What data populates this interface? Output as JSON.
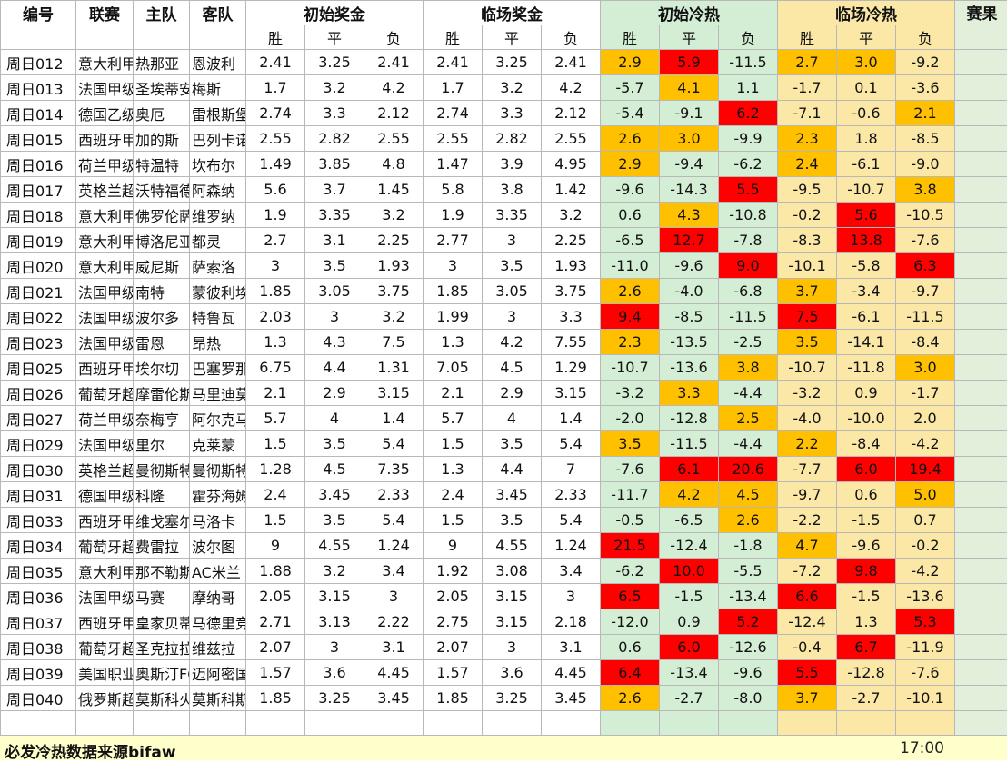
{
  "headers": {
    "code": "编号",
    "league": "联赛",
    "home": "主队",
    "away": "客队",
    "init_odds": "初始奖金",
    "live_odds": "临场奖金",
    "init_heat": "初始冷热",
    "live_heat": "临场冷热",
    "result": "赛果",
    "sub": [
      "胜",
      "平",
      "负",
      "胜",
      "平",
      "负",
      "胜",
      "平",
      "负",
      "胜",
      "平",
      "负"
    ]
  },
  "colors": {
    "red": "#ff0000",
    "orange": "#ffc000",
    "green_bg": "#d4eed6",
    "yellow_bg": "#fbe7a6",
    "footer_bg": "#ffffcc"
  },
  "rows": [
    {
      "code": "周日012",
      "league": "意大利甲",
      "home": "热那亚",
      "away": "恩波利",
      "io": [
        "2.41",
        "3.25",
        "2.41"
      ],
      "lo": [
        "2.41",
        "3.25",
        "2.41"
      ],
      "ih": [
        "2.9",
        "5.9",
        "-11.5"
      ],
      "ihc": [
        "o",
        "r",
        ""
      ],
      "lh": [
        "2.7",
        "3.0",
        "-9.2"
      ],
      "lhc": [
        "o",
        "o",
        ""
      ]
    },
    {
      "code": "周日013",
      "league": "法国甲级",
      "home": "圣埃蒂安",
      "away": "梅斯",
      "io": [
        "1.7",
        "3.2",
        "4.2"
      ],
      "lo": [
        "1.7",
        "3.2",
        "4.2"
      ],
      "ih": [
        "-5.7",
        "4.1",
        "1.1"
      ],
      "ihc": [
        "",
        "o",
        ""
      ],
      "lh": [
        "-1.7",
        "0.1",
        "-3.6"
      ],
      "lhc": [
        "",
        "",
        ""
      ]
    },
    {
      "code": "周日014",
      "league": "德国乙级",
      "home": "奥厄",
      "away": "雷根斯堡",
      "io": [
        "2.74",
        "3.3",
        "2.12"
      ],
      "lo": [
        "2.74",
        "3.3",
        "2.12"
      ],
      "ih": [
        "-5.4",
        "-9.1",
        "6.2"
      ],
      "ihc": [
        "",
        "",
        "r"
      ],
      "lh": [
        "-7.1",
        "-0.6",
        "2.1"
      ],
      "lhc": [
        "",
        "",
        "o"
      ]
    },
    {
      "code": "周日015",
      "league": "西班牙甲",
      "home": "加的斯",
      "away": "巴列卡诺",
      "io": [
        "2.55",
        "2.82",
        "2.55"
      ],
      "lo": [
        "2.55",
        "2.82",
        "2.55"
      ],
      "ih": [
        "2.6",
        "3.0",
        "-9.9"
      ],
      "ihc": [
        "o",
        "o",
        ""
      ],
      "lh": [
        "2.3",
        "1.8",
        "-8.5"
      ],
      "lhc": [
        "o",
        "",
        ""
      ]
    },
    {
      "code": "周日016",
      "league": "荷兰甲级",
      "home": "特温特",
      "away": "坎布尔",
      "io": [
        "1.49",
        "3.85",
        "4.8"
      ],
      "lo": [
        "1.47",
        "3.9",
        "4.95"
      ],
      "ih": [
        "2.9",
        "-9.4",
        "-6.2"
      ],
      "ihc": [
        "o",
        "",
        ""
      ],
      "lh": [
        "2.4",
        "-6.1",
        "-9.0"
      ],
      "lhc": [
        "o",
        "",
        ""
      ]
    },
    {
      "code": "周日017",
      "league": "英格兰超",
      "home": "沃特福德",
      "away": "阿森纳",
      "io": [
        "5.6",
        "3.7",
        "1.45"
      ],
      "lo": [
        "5.8",
        "3.8",
        "1.42"
      ],
      "ih": [
        "-9.6",
        "-14.3",
        "5.5"
      ],
      "ihc": [
        "",
        "",
        "r"
      ],
      "lh": [
        "-9.5",
        "-10.7",
        "3.8"
      ],
      "lhc": [
        "",
        "",
        "o"
      ]
    },
    {
      "code": "周日018",
      "league": "意大利甲",
      "home": "佛罗伦萨",
      "away": "维罗纳",
      "io": [
        "1.9",
        "3.35",
        "3.2"
      ],
      "lo": [
        "1.9",
        "3.35",
        "3.2"
      ],
      "ih": [
        "0.6",
        "4.3",
        "-10.8"
      ],
      "ihc": [
        "",
        "o",
        ""
      ],
      "lh": [
        "-0.2",
        "5.6",
        "-10.5"
      ],
      "lhc": [
        "",
        "r",
        ""
      ]
    },
    {
      "code": "周日019",
      "league": "意大利甲",
      "home": "博洛尼亚",
      "away": "都灵",
      "io": [
        "2.7",
        "3.1",
        "2.25"
      ],
      "lo": [
        "2.77",
        "3",
        "2.25"
      ],
      "ih": [
        "-6.5",
        "12.7",
        "-7.8"
      ],
      "ihc": [
        "",
        "r",
        ""
      ],
      "lh": [
        "-8.3",
        "13.8",
        "-7.6"
      ],
      "lhc": [
        "",
        "r",
        ""
      ]
    },
    {
      "code": "周日020",
      "league": "意大利甲",
      "home": "威尼斯",
      "away": "萨索洛",
      "io": [
        "3",
        "3.5",
        "1.93"
      ],
      "lo": [
        "3",
        "3.5",
        "1.93"
      ],
      "ih": [
        "-11.0",
        "-9.6",
        "9.0"
      ],
      "ihc": [
        "",
        "",
        "r"
      ],
      "lh": [
        "-10.1",
        "-5.8",
        "6.3"
      ],
      "lhc": [
        "",
        "",
        "r"
      ]
    },
    {
      "code": "周日021",
      "league": "法国甲级",
      "home": "南特",
      "away": "蒙彼利埃",
      "io": [
        "1.85",
        "3.05",
        "3.75"
      ],
      "lo": [
        "1.85",
        "3.05",
        "3.75"
      ],
      "ih": [
        "2.6",
        "-4.0",
        "-6.8"
      ],
      "ihc": [
        "o",
        "",
        ""
      ],
      "lh": [
        "3.7",
        "-3.4",
        "-9.7"
      ],
      "lhc": [
        "o",
        "",
        ""
      ]
    },
    {
      "code": "周日022",
      "league": "法国甲级",
      "home": "波尔多",
      "away": "特鲁瓦",
      "io": [
        "2.03",
        "3",
        "3.2"
      ],
      "lo": [
        "1.99",
        "3",
        "3.3"
      ],
      "ih": [
        "9.4",
        "-8.5",
        "-11.5"
      ],
      "ihc": [
        "r",
        "",
        ""
      ],
      "lh": [
        "7.5",
        "-6.1",
        "-11.5"
      ],
      "lhc": [
        "r",
        "",
        ""
      ]
    },
    {
      "code": "周日023",
      "league": "法国甲级",
      "home": "雷恩",
      "away": "昂热",
      "io": [
        "1.3",
        "4.3",
        "7.5"
      ],
      "lo": [
        "1.3",
        "4.2",
        "7.55"
      ],
      "ih": [
        "2.3",
        "-13.5",
        "-2.5"
      ],
      "ihc": [
        "o",
        "",
        ""
      ],
      "lh": [
        "3.5",
        "-14.1",
        "-8.4"
      ],
      "lhc": [
        "o",
        "",
        ""
      ]
    },
    {
      "code": "周日025",
      "league": "西班牙甲",
      "home": "埃尔切",
      "away": "巴塞罗那",
      "io": [
        "6.75",
        "4.4",
        "1.31"
      ],
      "lo": [
        "7.05",
        "4.5",
        "1.29"
      ],
      "ih": [
        "-10.7",
        "-13.6",
        "3.8"
      ],
      "ihc": [
        "",
        "",
        "o"
      ],
      "lh": [
        "-10.7",
        "-11.8",
        "3.0"
      ],
      "lhc": [
        "",
        "",
        "o"
      ]
    },
    {
      "code": "周日026",
      "league": "葡萄牙超",
      "home": "摩雷伦斯",
      "away": "马里迪莫",
      "io": [
        "2.1",
        "2.9",
        "3.15"
      ],
      "lo": [
        "2.1",
        "2.9",
        "3.15"
      ],
      "ih": [
        "-3.2",
        "3.3",
        "-4.4"
      ],
      "ihc": [
        "",
        "o",
        ""
      ],
      "lh": [
        "-3.2",
        "0.9",
        "-1.7"
      ],
      "lhc": [
        "",
        "",
        ""
      ]
    },
    {
      "code": "周日027",
      "league": "荷兰甲级",
      "home": "奈梅亨",
      "away": "阿尔克马尔",
      "io": [
        "5.7",
        "4",
        "1.4"
      ],
      "lo": [
        "5.7",
        "4",
        "1.4"
      ],
      "ih": [
        "-2.0",
        "-12.8",
        "2.5"
      ],
      "ihc": [
        "",
        "",
        "o"
      ],
      "lh": [
        "-4.0",
        "-10.0",
        "2.0"
      ],
      "lhc": [
        "",
        "",
        ""
      ]
    },
    {
      "code": "周日029",
      "league": "法国甲级",
      "home": "里尔",
      "away": "克莱蒙",
      "io": [
        "1.5",
        "3.5",
        "5.4"
      ],
      "lo": [
        "1.5",
        "3.5",
        "5.4"
      ],
      "ih": [
        "3.5",
        "-11.5",
        "-4.4"
      ],
      "ihc": [
        "o",
        "",
        ""
      ],
      "lh": [
        "2.2",
        "-8.4",
        "-4.2"
      ],
      "lhc": [
        "o",
        "",
        ""
      ]
    },
    {
      "code": "周日030",
      "league": "英格兰超",
      "home": "曼彻斯特联",
      "away": "曼彻斯特城",
      "io": [
        "1.28",
        "4.5",
        "7.35"
      ],
      "lo": [
        "1.3",
        "4.4",
        "7"
      ],
      "ih": [
        "-7.6",
        "6.1",
        "20.6"
      ],
      "ihc": [
        "",
        "r",
        "r"
      ],
      "lh": [
        "-7.7",
        "6.0",
        "19.4"
      ],
      "lhc": [
        "",
        "r",
        "r"
      ]
    },
    {
      "code": "周日031",
      "league": "德国甲级",
      "home": "科隆",
      "away": "霍芬海姆",
      "io": [
        "2.4",
        "3.45",
        "2.33"
      ],
      "lo": [
        "2.4",
        "3.45",
        "2.33"
      ],
      "ih": [
        "-11.7",
        "4.2",
        "4.5"
      ],
      "ihc": [
        "",
        "o",
        "o"
      ],
      "lh": [
        "-9.7",
        "0.6",
        "5.0"
      ],
      "lhc": [
        "",
        "",
        "o"
      ]
    },
    {
      "code": "周日033",
      "league": "西班牙甲",
      "home": "维戈塞尔塔",
      "away": "马洛卡",
      "io": [
        "1.5",
        "3.5",
        "5.4"
      ],
      "lo": [
        "1.5",
        "3.5",
        "5.4"
      ],
      "ih": [
        "-0.5",
        "-6.5",
        "2.6"
      ],
      "ihc": [
        "",
        "",
        "o"
      ],
      "lh": [
        "-2.2",
        "-1.5",
        "0.7"
      ],
      "lhc": [
        "",
        "",
        ""
      ]
    },
    {
      "code": "周日034",
      "league": "葡萄牙超",
      "home": "费雷拉",
      "away": "波尔图",
      "io": [
        "9",
        "4.55",
        "1.24"
      ],
      "lo": [
        "9",
        "4.55",
        "1.24"
      ],
      "ih": [
        "21.5",
        "-12.4",
        "-1.8"
      ],
      "ihc": [
        "r",
        "",
        ""
      ],
      "lh": [
        "4.7",
        "-9.6",
        "-0.2"
      ],
      "lhc": [
        "o",
        "",
        ""
      ]
    },
    {
      "code": "周日035",
      "league": "意大利甲",
      "home": "那不勒斯",
      "away": "AC米兰",
      "io": [
        "1.88",
        "3.2",
        "3.4"
      ],
      "lo": [
        "1.92",
        "3.08",
        "3.4"
      ],
      "ih": [
        "-6.2",
        "10.0",
        "-5.5"
      ],
      "ihc": [
        "",
        "r",
        ""
      ],
      "lh": [
        "-7.2",
        "9.8",
        "-4.2"
      ],
      "lhc": [
        "",
        "r",
        ""
      ]
    },
    {
      "code": "周日036",
      "league": "法国甲级",
      "home": "马赛",
      "away": "摩纳哥",
      "io": [
        "2.05",
        "3.15",
        "3"
      ],
      "lo": [
        "2.05",
        "3.15",
        "3"
      ],
      "ih": [
        "6.5",
        "-1.5",
        "-13.4"
      ],
      "ihc": [
        "r",
        "",
        ""
      ],
      "lh": [
        "6.6",
        "-1.5",
        "-13.6"
      ],
      "lhc": [
        "r",
        "",
        ""
      ]
    },
    {
      "code": "周日037",
      "league": "西班牙甲",
      "home": "皇家贝蒂斯",
      "away": "马德里竞技",
      "io": [
        "2.71",
        "3.13",
        "2.22"
      ],
      "lo": [
        "2.75",
        "3.15",
        "2.18"
      ],
      "ih": [
        "-12.0",
        "0.9",
        "5.2"
      ],
      "ihc": [
        "",
        "",
        "r"
      ],
      "lh": [
        "-12.4",
        "1.3",
        "5.3"
      ],
      "lhc": [
        "",
        "",
        "r"
      ]
    },
    {
      "code": "周日038",
      "league": "葡萄牙超",
      "home": "圣克拉拉",
      "away": "维兹拉",
      "io": [
        "2.07",
        "3",
        "3.1"
      ],
      "lo": [
        "2.07",
        "3",
        "3.1"
      ],
      "ih": [
        "0.6",
        "6.0",
        "-12.6"
      ],
      "ihc": [
        "",
        "r",
        ""
      ],
      "lh": [
        "-0.4",
        "6.7",
        "-11.9"
      ],
      "lhc": [
        "",
        "r",
        ""
      ]
    },
    {
      "code": "周日039",
      "league": "美国职业",
      "home": "奥斯汀FC",
      "away": "迈阿密国际",
      "io": [
        "1.57",
        "3.6",
        "4.45"
      ],
      "lo": [
        "1.57",
        "3.6",
        "4.45"
      ],
      "ih": [
        "6.4",
        "-13.4",
        "-9.6"
      ],
      "ihc": [
        "r",
        "",
        ""
      ],
      "lh": [
        "5.5",
        "-12.8",
        "-7.6"
      ],
      "lhc": [
        "r",
        "",
        ""
      ]
    },
    {
      "code": "周日040",
      "league": "俄罗斯超",
      "home": "莫斯科火车头",
      "away": "莫斯科斯巴达",
      "io": [
        "1.85",
        "3.25",
        "3.45"
      ],
      "lo": [
        "1.85",
        "3.25",
        "3.45"
      ],
      "ih": [
        "2.6",
        "-2.7",
        "-8.0"
      ],
      "ihc": [
        "o",
        "",
        ""
      ],
      "lh": [
        "3.7",
        "-2.7",
        "-10.1"
      ],
      "lhc": [
        "o",
        "",
        ""
      ]
    }
  ],
  "footer": {
    "source": "必发冷热数据来源bifaw",
    "time": "17:00"
  }
}
